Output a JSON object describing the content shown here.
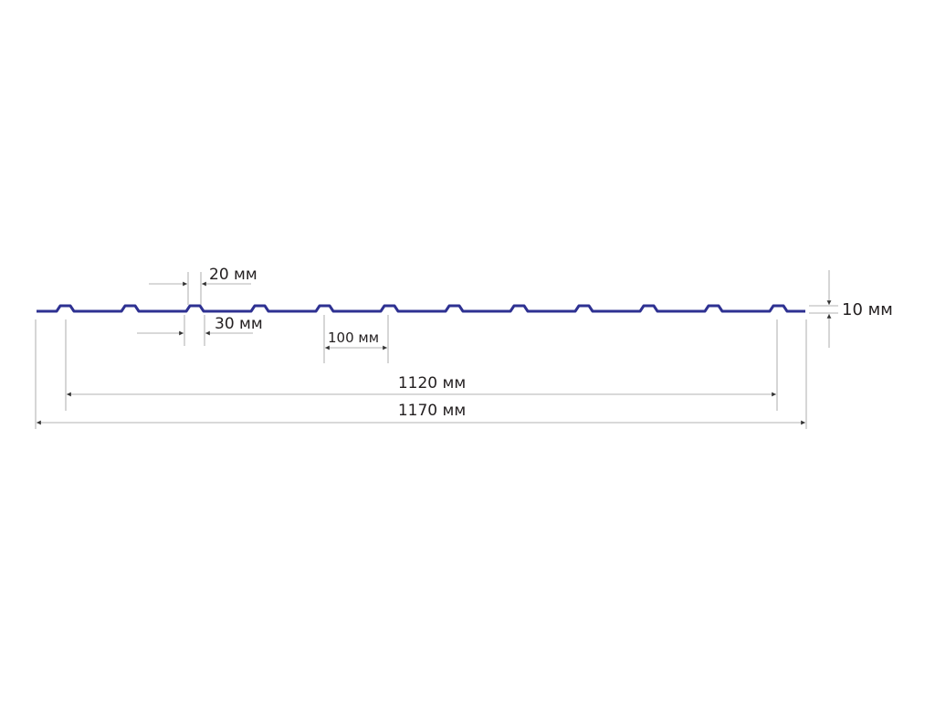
{
  "profile": {
    "color": "#2e3192",
    "ridge_count": 12
  },
  "dimensions": {
    "rib_top": "20 мм",
    "rib_bottom": "30 мм",
    "pitch": "100 мм",
    "useful_width": "1120 мм",
    "full_width": "1170 мм",
    "height": "10 мм"
  }
}
